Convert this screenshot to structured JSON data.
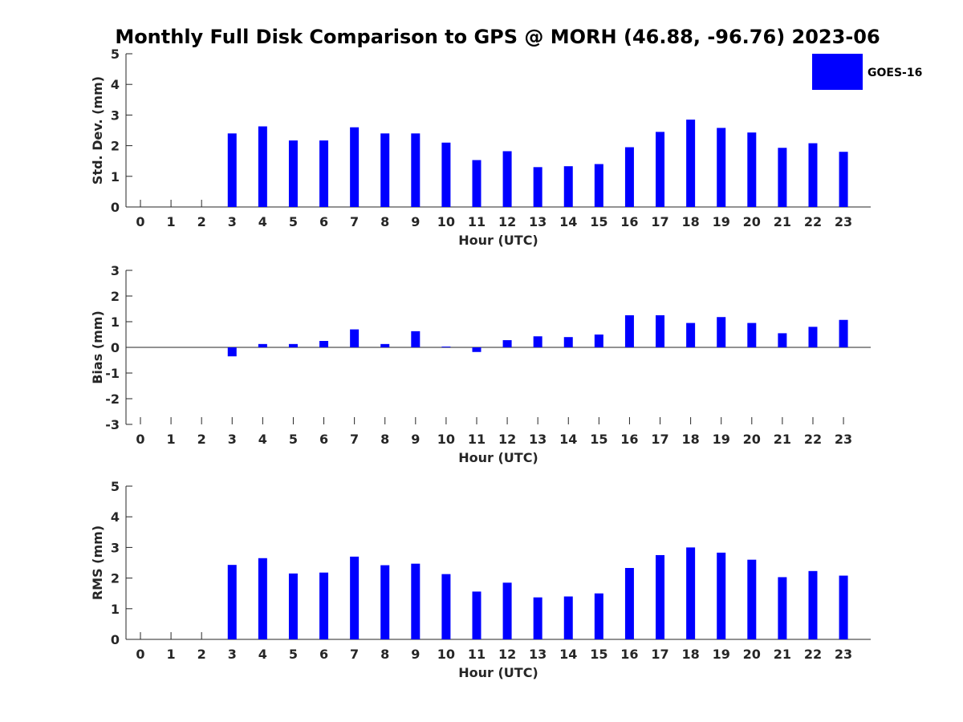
{
  "title": "Monthly Full Disk Comparison to GPS @ MORH (46.88, -96.76) 2023-06",
  "colors": {
    "bar": "#0000ff",
    "axis": "#262626",
    "background": "#ffffff"
  },
  "chart_data": [
    {
      "type": "bar",
      "categories": [
        "0",
        "1",
        "2",
        "3",
        "4",
        "5",
        "6",
        "7",
        "8",
        "9",
        "10",
        "11",
        "12",
        "13",
        "14",
        "15",
        "16",
        "17",
        "18",
        "19",
        "20",
        "21",
        "22",
        "23"
      ],
      "series": [
        {
          "name": "GOES-16",
          "values": [
            null,
            null,
            null,
            2.4,
            2.63,
            2.17,
            2.17,
            2.6,
            2.4,
            2.4,
            2.1,
            1.53,
            1.82,
            1.3,
            1.33,
            1.4,
            1.95,
            2.45,
            2.85,
            2.58,
            2.43,
            1.93,
            2.08,
            1.8
          ]
        }
      ],
      "xlabel": "Hour (UTC)",
      "ylabel": "Std. Dev. (mm)",
      "ylim": [
        0,
        5
      ],
      "yticks": [
        0,
        1,
        2,
        3,
        4,
        5
      ],
      "legend": "top-right",
      "grid": false
    },
    {
      "type": "bar",
      "categories": [
        "0",
        "1",
        "2",
        "3",
        "4",
        "5",
        "6",
        "7",
        "8",
        "9",
        "10",
        "11",
        "12",
        "13",
        "14",
        "15",
        "16",
        "17",
        "18",
        "19",
        "20",
        "21",
        "22",
        "23"
      ],
      "series": [
        {
          "name": "GOES-16",
          "values": [
            null,
            null,
            null,
            -0.35,
            0.13,
            0.13,
            0.25,
            0.7,
            0.13,
            0.63,
            0.03,
            -0.18,
            0.28,
            0.43,
            0.4,
            0.5,
            1.25,
            1.25,
            0.95,
            1.18,
            0.95,
            0.55,
            0.8,
            1.07
          ]
        }
      ],
      "xlabel": "Hour (UTC)",
      "ylabel": "Bias (mm)",
      "ylim": [
        -3,
        3
      ],
      "yticks": [
        -3,
        -2,
        -1,
        0,
        1,
        2,
        3
      ],
      "grid": false
    },
    {
      "type": "bar",
      "categories": [
        "0",
        "1",
        "2",
        "3",
        "4",
        "5",
        "6",
        "7",
        "8",
        "9",
        "10",
        "11",
        "12",
        "13",
        "14",
        "15",
        "16",
        "17",
        "18",
        "19",
        "20",
        "21",
        "22",
        "23"
      ],
      "series": [
        {
          "name": "GOES-16",
          "values": [
            null,
            null,
            null,
            2.43,
            2.65,
            2.15,
            2.18,
            2.7,
            2.42,
            2.47,
            2.13,
            1.56,
            1.85,
            1.37,
            1.4,
            1.5,
            2.33,
            2.75,
            3.0,
            2.83,
            2.6,
            2.03,
            2.23,
            2.08
          ]
        }
      ],
      "xlabel": "Hour (UTC)",
      "ylabel": "RMS (mm)",
      "ylim": [
        0,
        5
      ],
      "yticks": [
        0,
        1,
        2,
        3,
        4,
        5
      ],
      "grid": false
    }
  ]
}
